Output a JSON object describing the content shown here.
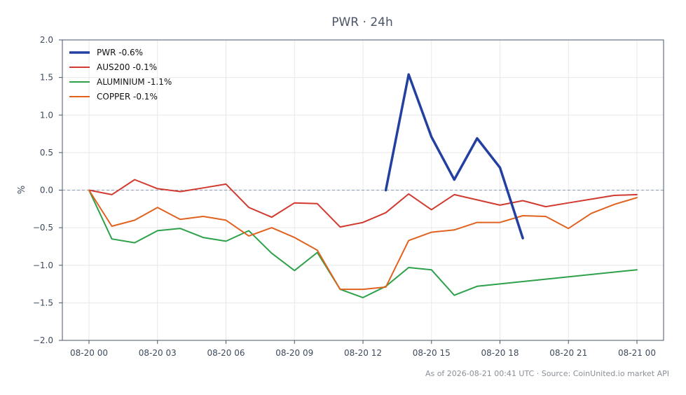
{
  "chart_data": {
    "type": "line",
    "title": "PWR · 24h",
    "xlabel": "",
    "ylabel": "%",
    "ylim": [
      -2.0,
      2.0
    ],
    "yticks": [
      2.0,
      1.5,
      1.0,
      0.5,
      0.0,
      -0.5,
      -1.0,
      -1.5,
      -2.0
    ],
    "ytick_labels": [
      "2.0",
      "1.5",
      "1.0",
      "0.5",
      "0.0",
      "−0.5",
      "−1.0",
      "−1.5",
      "−2.0"
    ],
    "xlim": [
      "2026-08-19 22:50",
      "2026-08-21 01:10"
    ],
    "xticks": [
      "2026-08-20 00:00",
      "2026-08-20 03:00",
      "2026-08-20 06:00",
      "2026-08-20 09:00",
      "2026-08-20 12:00",
      "2026-08-20 15:00",
      "2026-08-20 18:00",
      "2026-08-20 21:00",
      "2026-08-21 00:00"
    ],
    "xtick_labels": [
      "08-20 00",
      "08-20 03",
      "08-20 06",
      "08-20 09",
      "08-20 12",
      "08-20 15",
      "08-20 18",
      "08-20 21",
      "08-21 00"
    ],
    "grid": true,
    "legend_position": "top-left",
    "reference_line": {
      "y": 0.0,
      "style": "dashed",
      "color": "#8e9ab8"
    },
    "series": [
      {
        "name": "PWR -0.6%",
        "color": "#2340a0",
        "width": 3.5,
        "x": [
          "2026-08-20 13:00",
          "2026-08-20 14:00",
          "2026-08-20 15:00",
          "2026-08-20 16:00",
          "2026-08-20 17:00",
          "2026-08-20 18:00",
          "2026-08-20 19:00"
        ],
        "y": [
          0.0,
          1.54,
          0.71,
          0.14,
          0.69,
          0.3,
          -0.64
        ]
      },
      {
        "name": "AUS200 -0.1%",
        "color": "#d13a2f",
        "width": 2,
        "x": [
          "2026-08-20 00:00",
          "2026-08-20 01:00",
          "2026-08-20 02:00",
          "2026-08-20 03:00",
          "2026-08-20 04:00",
          "2026-08-20 05:00",
          "2026-08-20 06:00",
          "2026-08-20 07:00",
          "2026-08-20 08:00",
          "2026-08-20 09:00",
          "2026-08-20 10:00",
          "2026-08-20 11:00",
          "2026-08-20 12:00",
          "2026-08-20 13:00",
          "2026-08-20 14:00",
          "2026-08-20 15:00",
          "2026-08-20 16:00",
          "2026-08-20 17:00",
          "2026-08-20 18:00",
          "2026-08-20 19:00",
          "2026-08-20 20:00",
          "2026-08-20 21:00",
          "2026-08-20 22:00",
          "2026-08-20 23:00",
          "2026-08-21 00:00"
        ],
        "y": [
          0.0,
          -0.06,
          0.14,
          0.02,
          -0.02,
          0.03,
          0.08,
          -0.23,
          -0.36,
          -0.17,
          -0.18,
          -0.49,
          -0.43,
          -0.3,
          -0.05,
          -0.26,
          -0.06,
          -0.13,
          -0.2,
          -0.14,
          -0.22,
          -0.17,
          -0.12,
          -0.07,
          -0.06
        ]
      },
      {
        "name": "ALUMINIUM -1.1%",
        "color": "#2ca14a",
        "width": 2,
        "x": [
          "2026-08-20 00:00",
          "2026-08-20 01:00",
          "2026-08-20 02:00",
          "2026-08-20 03:00",
          "2026-08-20 04:00",
          "2026-08-20 05:00",
          "2026-08-20 06:00",
          "2026-08-20 07:00",
          "2026-08-20 08:00",
          "2026-08-20 09:00",
          "2026-08-20 10:00",
          "2026-08-20 11:00",
          "2026-08-20 12:00",
          "2026-08-20 13:00",
          "2026-08-20 14:00",
          "2026-08-20 15:00",
          "2026-08-20 16:00",
          "2026-08-20 17:00",
          "2026-08-21 00:00"
        ],
        "y": [
          0.0,
          -0.65,
          -0.7,
          -0.54,
          -0.51,
          -0.63,
          -0.68,
          -0.54,
          -0.84,
          -1.07,
          -0.83,
          -1.32,
          -1.43,
          -1.28,
          -1.03,
          -1.06,
          -1.4,
          -1.28,
          -1.06
        ]
      },
      {
        "name": "COPPER -0.1%",
        "color": "#e0621e",
        "width": 2,
        "x": [
          "2026-08-20 00:00",
          "2026-08-20 01:00",
          "2026-08-20 02:00",
          "2026-08-20 03:00",
          "2026-08-20 04:00",
          "2026-08-20 05:00",
          "2026-08-20 06:00",
          "2026-08-20 07:00",
          "2026-08-20 08:00",
          "2026-08-20 09:00",
          "2026-08-20 10:00",
          "2026-08-20 11:00",
          "2026-08-20 12:00",
          "2026-08-20 13:00",
          "2026-08-20 14:00",
          "2026-08-20 15:00",
          "2026-08-20 16:00",
          "2026-08-20 17:00",
          "2026-08-20 18:00",
          "2026-08-20 19:00",
          "2026-08-20 20:00",
          "2026-08-20 21:00",
          "2026-08-20 22:00",
          "2026-08-20 23:00",
          "2026-08-21 00:00"
        ],
        "y": [
          0.0,
          -0.48,
          -0.4,
          -0.23,
          -0.39,
          -0.35,
          -0.4,
          -0.61,
          -0.5,
          -0.63,
          -0.8,
          -1.32,
          -1.32,
          -1.29,
          -0.67,
          -0.56,
          -0.53,
          -0.43,
          -0.43,
          -0.34,
          -0.35,
          -0.51,
          -0.31,
          -0.19,
          -0.1
        ]
      }
    ]
  },
  "footer": "As of 2026-08-21 00:41 UTC · Source: CoinUnited.io market API"
}
